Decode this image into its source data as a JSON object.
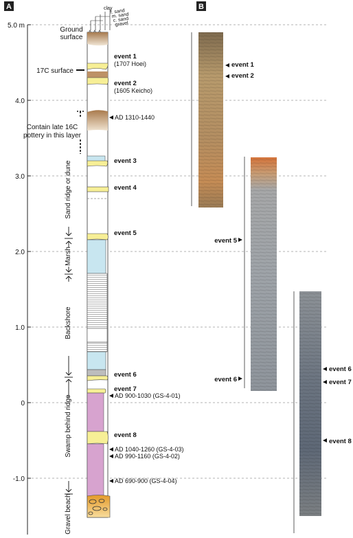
{
  "panels": {
    "a": "A",
    "b": "B"
  },
  "axis": {
    "tick_labels": [
      "5.0 m",
      "4.0",
      "3.0",
      "2.0",
      "1.0",
      "0",
      "-1.0"
    ]
  },
  "grain_size": [
    "clay",
    "f. sand",
    "m. sand",
    "c. sand",
    "gravel"
  ],
  "left_labels": {
    "ground_surface": [
      "Ground",
      "surface"
    ],
    "surface_17c": "17C surface",
    "pottery_note": [
      "Contain late 16C",
      "pottery in this layer"
    ]
  },
  "units": {
    "sand_ridge": "Sand ridge or dune",
    "marsh": "Marsh",
    "backshore": "Backshore",
    "swamp": "Swamp behind ridge",
    "gravel_beach": "Gravel beach"
  },
  "events": [
    {
      "label": "event 1",
      "sub": "(1707 Hoei)"
    },
    {
      "label": "event 2",
      "sub": "(1605 Keicho)"
    },
    {
      "label": "event 3",
      "sub": ""
    },
    {
      "label": "event 4",
      "sub": ""
    },
    {
      "label": "event 5",
      "sub": ""
    },
    {
      "label": "event 6",
      "sub": ""
    },
    {
      "label": "event 7",
      "sub": ""
    },
    {
      "label": "event 8",
      "sub": ""
    }
  ],
  "dates": [
    "AD 1310-1440",
    "AD 900-1030 (GS-4-01)",
    "AD 1040-1260 (GS-4-03)",
    "AD 990-1160 (GS-4-02)",
    "AD 690-900 (GS-4-04)"
  ],
  "core_labels": {
    "core1": [
      "event 1",
      "event 2"
    ],
    "core2": [
      "event 5",
      "event 6"
    ],
    "core3": [
      "event 6",
      "event 7",
      "event 8"
    ]
  },
  "colors": {
    "sand_yellow": "#f7ef96",
    "marsh_blue": "#c8e6f0",
    "swamp_purple": "#d7a3cf",
    "soil_brown": "#a67a4f",
    "gravel_orange": "#eba93d"
  }
}
